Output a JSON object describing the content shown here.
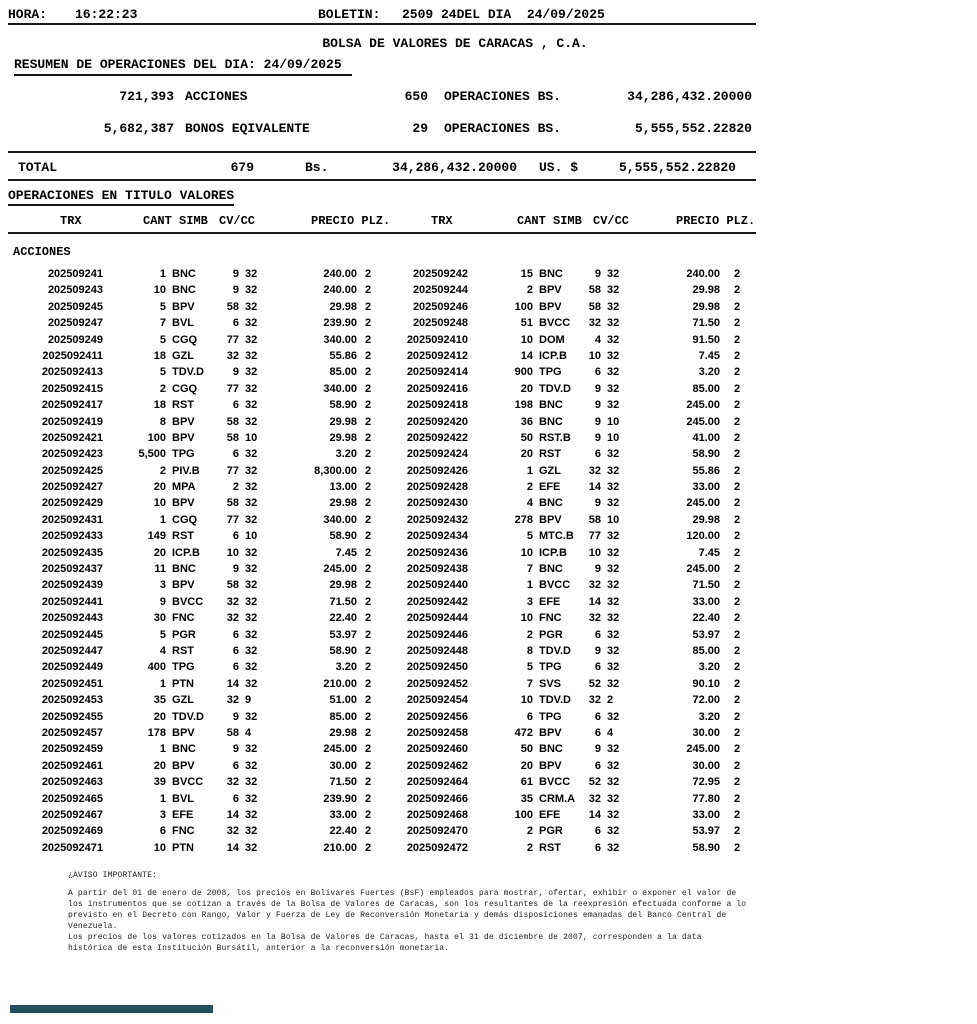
{
  "header": {
    "hora_label": "HORA:",
    "hora_value": "16:22:23",
    "boletin_label": "BOLETIN:",
    "boletin_value": "2509 24DEL DIA  24/09/2025",
    "company": "BOLSA DE VALORES DE CARACAS , C.A.",
    "resumen_title": "RESUMEN DE OPERACIONES DEL DIA: 24/09/2025"
  },
  "summary": {
    "rows": [
      {
        "qty": "721,393",
        "label": "ACCIONES",
        "ops": "650",
        "ops_label": "OPERACIONES BS.",
        "amount": "34,286,432.20000"
      },
      {
        "qty": "5,682,387",
        "label": "BONOS EQIVALENTE",
        "ops": "29",
        "ops_label": "OPERACIONES BS.",
        "amount": "5,555,552.22820"
      }
    ],
    "total": {
      "label": "TOTAL",
      "count": "679",
      "currency_label": "Bs.",
      "bs_amount": "34,286,432.20000",
      "usd_label": "US. $",
      "usd_amount": "5,555,552.22820"
    }
  },
  "table": {
    "section_title": "OPERACIONES EN TITULO VALORES",
    "group_label": "ACCIONES",
    "headers": {
      "trx": "TRX",
      "cant_simb": "CANT SIMB",
      "cv_cc": "CV/CC",
      "precio_plz": "PRECIO PLZ."
    },
    "rows": [
      [
        "202509241",
        "1",
        "BNC",
        "9",
        "32",
        "240.00",
        "2",
        "202509242",
        "15",
        "BNC",
        "9",
        "32",
        "240.00",
        "2"
      ],
      [
        "202509243",
        "10",
        "BNC",
        "9",
        "32",
        "240.00",
        "2",
        "202509244",
        "2",
        "BPV",
        "58",
        "32",
        "29.98",
        "2"
      ],
      [
        "202509245",
        "5",
        "BPV",
        "58",
        "32",
        "29.98",
        "2",
        "202509246",
        "100",
        "BPV",
        "58",
        "32",
        "29.98",
        "2"
      ],
      [
        "202509247",
        "7",
        "BVL",
        "6",
        "32",
        "239.90",
        "2",
        "202509248",
        "51",
        "BVCC",
        "32",
        "32",
        "71.50",
        "2"
      ],
      [
        "202509249",
        "5",
        "CGQ",
        "77",
        "32",
        "340.00",
        "2",
        "2025092410",
        "10",
        "DOM",
        "4",
        "32",
        "91.50",
        "2"
      ],
      [
        "2025092411",
        "18",
        "GZL",
        "32",
        "32",
        "55.86",
        "2",
        "2025092412",
        "14",
        "ICP.B",
        "10",
        "32",
        "7.45",
        "2"
      ],
      [
        "2025092413",
        "5",
        "TDV.D",
        "9",
        "32",
        "85.00",
        "2",
        "2025092414",
        "900",
        "TPG",
        "6",
        "32",
        "3.20",
        "2"
      ],
      [
        "2025092415",
        "2",
        "CGQ",
        "77",
        "32",
        "340.00",
        "2",
        "2025092416",
        "20",
        "TDV.D",
        "9",
        "32",
        "85.00",
        "2"
      ],
      [
        "2025092417",
        "18",
        "RST",
        "6",
        "32",
        "58.90",
        "2",
        "2025092418",
        "198",
        "BNC",
        "9",
        "32",
        "245.00",
        "2"
      ],
      [
        "2025092419",
        "8",
        "BPV",
        "58",
        "32",
        "29.98",
        "2",
        "2025092420",
        "36",
        "BNC",
        "9",
        "10",
        "245.00",
        "2"
      ],
      [
        "2025092421",
        "100",
        "BPV",
        "58",
        "10",
        "29.98",
        "2",
        "2025092422",
        "50",
        "RST.B",
        "9",
        "10",
        "41.00",
        "2"
      ],
      [
        "2025092423",
        "5,500",
        "TPG",
        "6",
        "32",
        "3.20",
        "2",
        "2025092424",
        "20",
        "RST",
        "6",
        "32",
        "58.90",
        "2"
      ],
      [
        "2025092425",
        "2",
        "PIV.B",
        "77",
        "32",
        "8,300.00",
        "2",
        "2025092426",
        "1",
        "GZL",
        "32",
        "32",
        "55.86",
        "2"
      ],
      [
        "2025092427",
        "20",
        "MPA",
        "2",
        "32",
        "13.00",
        "2",
        "2025092428",
        "2",
        "EFE",
        "14",
        "32",
        "33.00",
        "2"
      ],
      [
        "2025092429",
        "10",
        "BPV",
        "58",
        "32",
        "29.98",
        "2",
        "2025092430",
        "4",
        "BNC",
        "9",
        "32",
        "245.00",
        "2"
      ],
      [
        "2025092431",
        "1",
        "CGQ",
        "77",
        "32",
        "340.00",
        "2",
        "2025092432",
        "278",
        "BPV",
        "58",
        "10",
        "29.98",
        "2"
      ],
      [
        "2025092433",
        "149",
        "RST",
        "6",
        "10",
        "58.90",
        "2",
        "2025092434",
        "5",
        "MTC.B",
        "77",
        "32",
        "120.00",
        "2"
      ],
      [
        "2025092435",
        "20",
        "ICP.B",
        "10",
        "32",
        "7.45",
        "2",
        "2025092436",
        "10",
        "ICP.B",
        "10",
        "32",
        "7.45",
        "2"
      ],
      [
        "2025092437",
        "11",
        "BNC",
        "9",
        "32",
        "245.00",
        "2",
        "2025092438",
        "7",
        "BNC",
        "9",
        "32",
        "245.00",
        "2"
      ],
      [
        "2025092439",
        "3",
        "BPV",
        "58",
        "32",
        "29.98",
        "2",
        "2025092440",
        "1",
        "BVCC",
        "32",
        "32",
        "71.50",
        "2"
      ],
      [
        "2025092441",
        "9",
        "BVCC",
        "32",
        "32",
        "71.50",
        "2",
        "2025092442",
        "3",
        "EFE",
        "14",
        "32",
        "33.00",
        "2"
      ],
      [
        "2025092443",
        "30",
        "FNC",
        "32",
        "32",
        "22.40",
        "2",
        "2025092444",
        "10",
        "FNC",
        "32",
        "32",
        "22.40",
        "2"
      ],
      [
        "2025092445",
        "5",
        "PGR",
        "6",
        "32",
        "53.97",
        "2",
        "2025092446",
        "2",
        "PGR",
        "6",
        "32",
        "53.97",
        "2"
      ],
      [
        "2025092447",
        "4",
        "RST",
        "6",
        "32",
        "58.90",
        "2",
        "2025092448",
        "8",
        "TDV.D",
        "9",
        "32",
        "85.00",
        "2"
      ],
      [
        "2025092449",
        "400",
        "TPG",
        "6",
        "32",
        "3.20",
        "2",
        "2025092450",
        "5",
        "TPG",
        "6",
        "32",
        "3.20",
        "2"
      ],
      [
        "2025092451",
        "1",
        "PTN",
        "14",
        "32",
        "210.00",
        "2",
        "2025092452",
        "7",
        "SVS",
        "52",
        "32",
        "90.10",
        "2"
      ],
      [
        "2025092453",
        "35",
        "GZL",
        "32",
        "9",
        "51.00",
        "2",
        "2025092454",
        "10",
        "TDV.D",
        "32",
        "2",
        "72.00",
        "2"
      ],
      [
        "2025092455",
        "20",
        "TDV.D",
        "9",
        "32",
        "85.00",
        "2",
        "2025092456",
        "6",
        "TPG",
        "6",
        "32",
        "3.20",
        "2"
      ],
      [
        "2025092457",
        "178",
        "BPV",
        "58",
        "4",
        "29.98",
        "2",
        "2025092458",
        "472",
        "BPV",
        "6",
        "4",
        "30.00",
        "2"
      ],
      [
        "2025092459",
        "1",
        "BNC",
        "9",
        "32",
        "245.00",
        "2",
        "2025092460",
        "50",
        "BNC",
        "9",
        "32",
        "245.00",
        "2"
      ],
      [
        "2025092461",
        "20",
        "BPV",
        "6",
        "32",
        "30.00",
        "2",
        "2025092462",
        "20",
        "BPV",
        "6",
        "32",
        "30.00",
        "2"
      ],
      [
        "2025092463",
        "39",
        "BVCC",
        "32",
        "32",
        "71.50",
        "2",
        "2025092464",
        "61",
        "BVCC",
        "52",
        "32",
        "72.95",
        "2"
      ],
      [
        "2025092465",
        "1",
        "BVL",
        "6",
        "32",
        "239.90",
        "2",
        "2025092466",
        "35",
        "CRM.A",
        "32",
        "32",
        "77.80",
        "2"
      ],
      [
        "2025092467",
        "3",
        "EFE",
        "14",
        "32",
        "33.00",
        "2",
        "2025092468",
        "100",
        "EFE",
        "14",
        "32",
        "33.00",
        "2"
      ],
      [
        "2025092469",
        "6",
        "FNC",
        "32",
        "32",
        "22.40",
        "2",
        "2025092470",
        "2",
        "PGR",
        "6",
        "32",
        "53.97",
        "2"
      ],
      [
        "2025092471",
        "10",
        "PTN",
        "14",
        "32",
        "210.00",
        "2",
        "2025092472",
        "2",
        "RST",
        "6",
        "32",
        "58.90",
        "2"
      ]
    ]
  },
  "footer": {
    "title": "¿AVISO IMPORTANTE:",
    "lines": [
      "A partir del 01 de enero de 2008, los precios en Bolívares Fuertes (BsF) empleados para mostrar, ofertar, exhibir o exponer el valor de",
      "los instrumentos que se cotizan a través de la Bolsa de Valores de Caracas, son los resultantes de la reexpresión efectuada conforme a lo",
      "previsto en el Decreto con Rango, Valor y Fuerza de Ley de Reconversión Monetaria y demás disposiciones emanadas del Banco Central de",
      "Venezuela.",
      "Los precios de los valores cotizados en la Bolsa de Valores de Caracas, hasta el 31 de diciembre de 2007, corresponden a la data",
      "histórica de esta Institución Bursátil, anterior a la reconversión monetaria."
    ]
  },
  "colors": {
    "accent_bar": "#214f5b",
    "text": "#000000"
  }
}
